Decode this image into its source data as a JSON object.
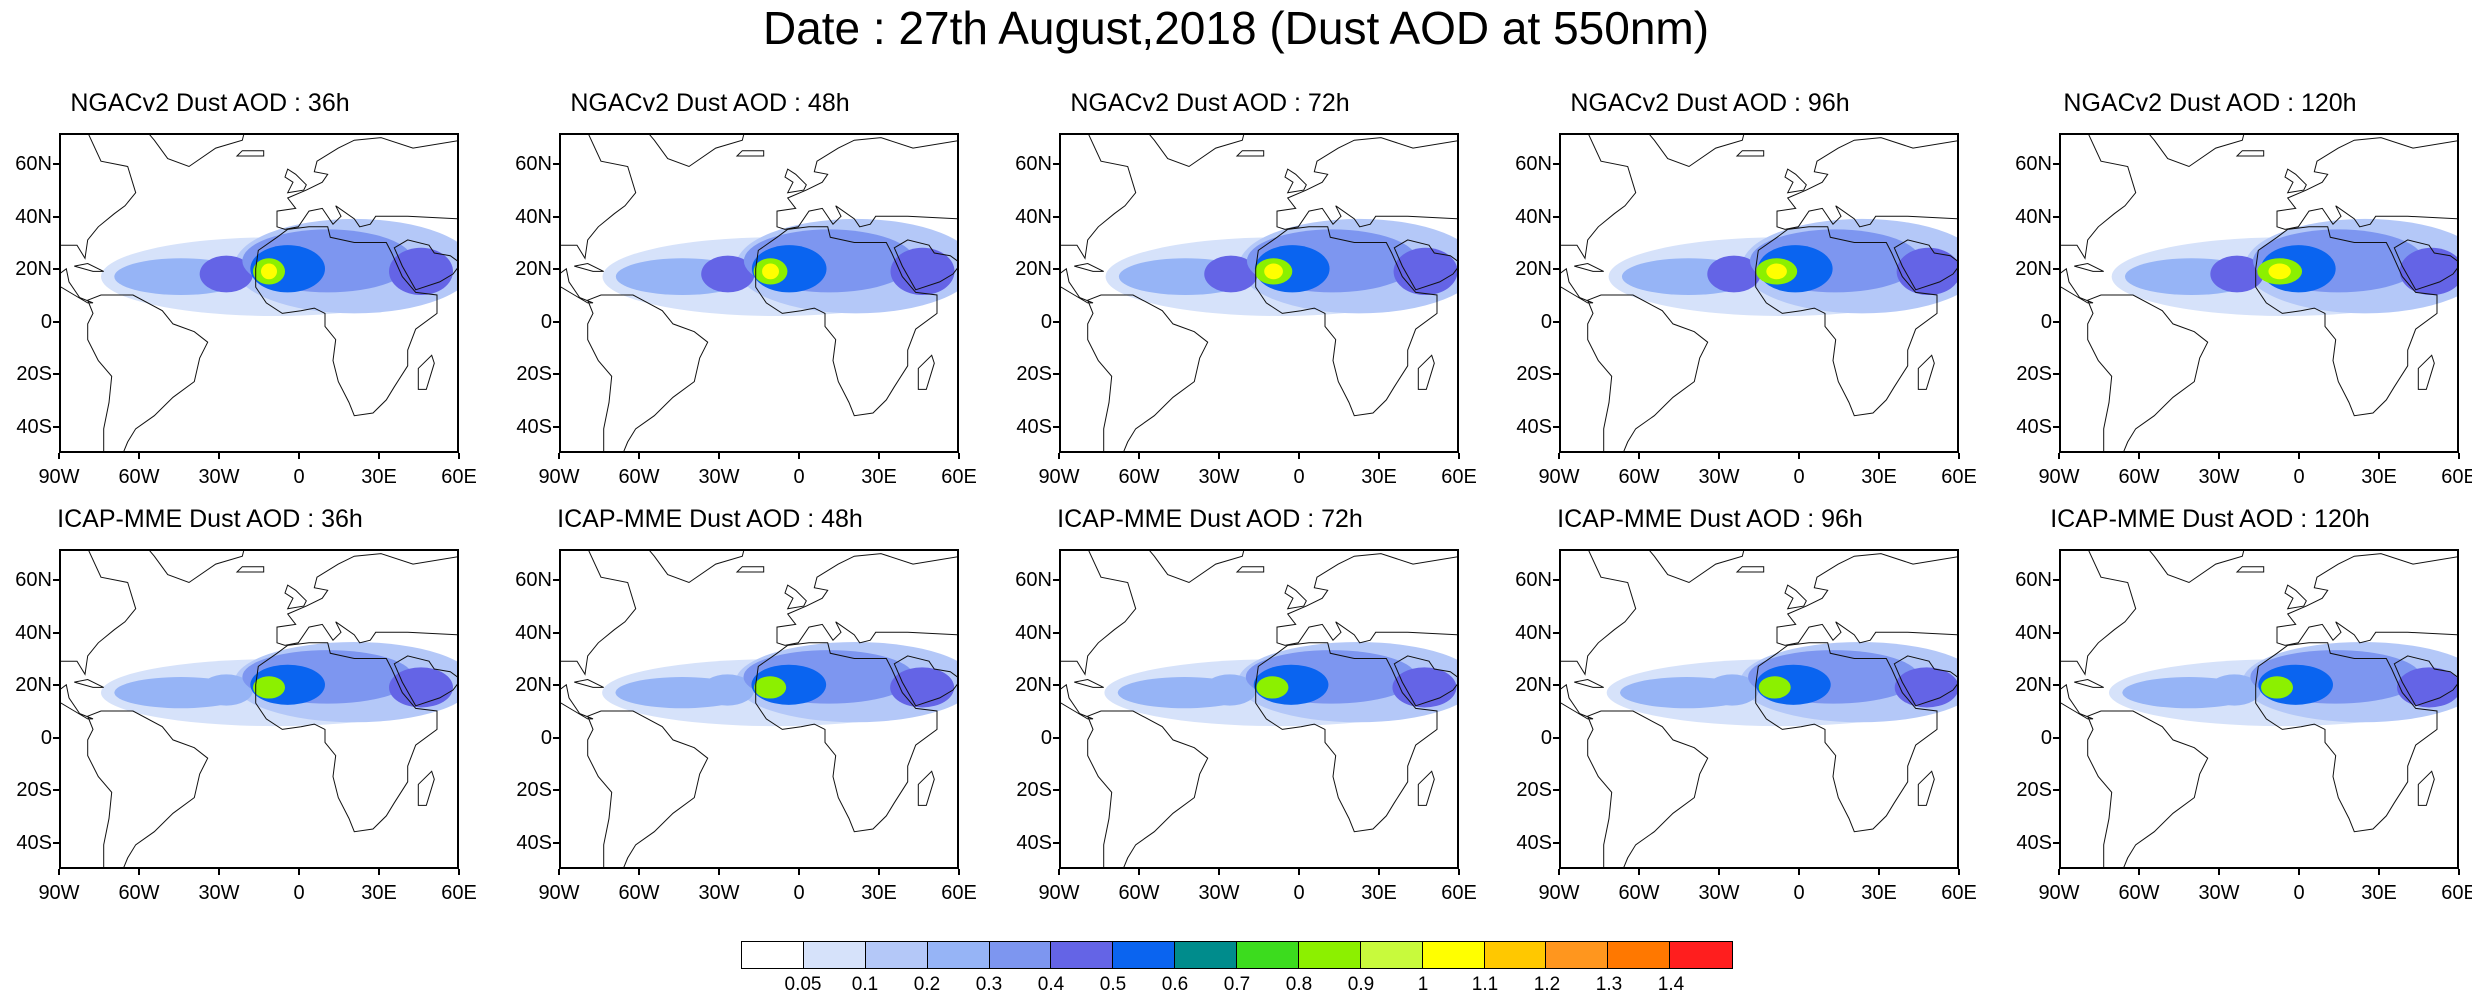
{
  "title": "Date : 27th August,2018 (Dust AOD at 550nm)",
  "rows": [
    {
      "model": "NGACv2",
      "panels": [
        {
          "title": "NGACv2 Dust AOD : 36h",
          "lead_h": 36
        },
        {
          "title": "NGACv2 Dust AOD : 48h",
          "lead_h": 48
        },
        {
          "title": "NGACv2 Dust AOD : 72h",
          "lead_h": 72
        },
        {
          "title": "NGACv2 Dust AOD : 96h",
          "lead_h": 96
        },
        {
          "title": "NGACv2 Dust AOD : 120h",
          "lead_h": 120
        }
      ]
    },
    {
      "model": "ICAP-MME",
      "panels": [
        {
          "title": "ICAP-MME Dust AOD : 36h",
          "lead_h": 36
        },
        {
          "title": "ICAP-MME Dust AOD : 48h",
          "lead_h": 48
        },
        {
          "title": "ICAP-MME Dust AOD : 72h",
          "lead_h": 72
        },
        {
          "title": "ICAP-MME Dust AOD : 96h",
          "lead_h": 96
        },
        {
          "title": "ICAP-MME Dust AOD : 120h",
          "lead_h": 120
        }
      ]
    }
  ],
  "map_extent": {
    "lon_min": -90,
    "lon_max": 60,
    "lat_min": -50,
    "lat_max": 72
  },
  "lat_ticks": [
    "60N",
    "40N",
    "20N",
    "0",
    "20S",
    "40S"
  ],
  "lat_values": [
    60,
    40,
    20,
    0,
    -20,
    -40
  ],
  "lon_ticks": [
    "90W",
    "60W",
    "30W",
    "0",
    "30E",
    "60E"
  ],
  "lon_values": [
    -90,
    -60,
    -30,
    0,
    30,
    60
  ],
  "colorbar": {
    "labels": [
      "0.05",
      "0.1",
      "0.2",
      "0.3",
      "0.4",
      "0.5",
      "0.6",
      "0.7",
      "0.8",
      "0.9",
      "1",
      "1.1",
      "1.2",
      "1.3",
      "1.4"
    ],
    "colors": [
      "#ffffff",
      "#d6e2fa",
      "#b4c8f8",
      "#96b4f6",
      "#7d96f0",
      "#6464e6",
      "#0a64f0",
      "#008c8c",
      "#3cdc1e",
      "#8cf000",
      "#c8fa3c",
      "#ffff00",
      "#ffc800",
      "#ff961e",
      "#ff7800",
      "#ff1e1e"
    ]
  }
}
